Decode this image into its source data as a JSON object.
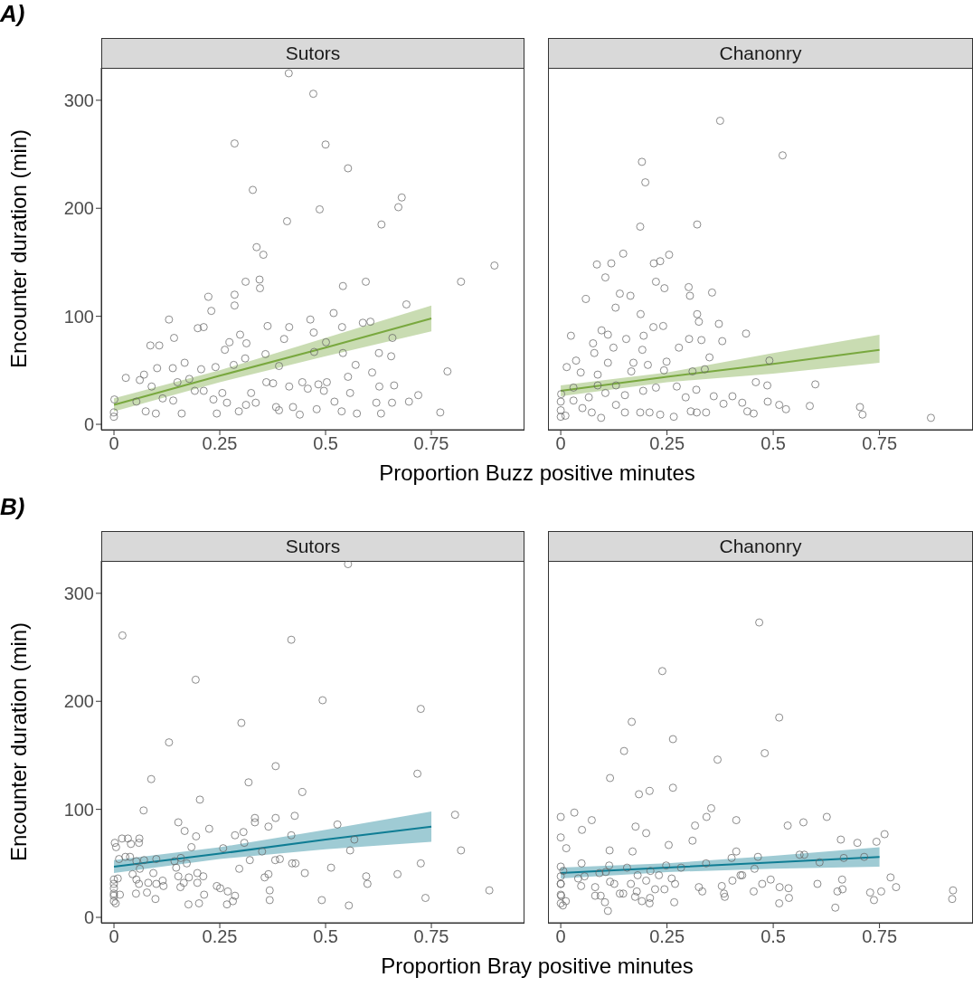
{
  "chart_data": [
    {
      "type": "scatter",
      "title": "Sutors",
      "annotations": [
        "A)"
      ],
      "xlabel": "Proportion Buzz positive minutes",
      "ylabel": "Encounter duration (min)",
      "xlim": [
        -0.03,
        0.97
      ],
      "ylim": [
        -5,
        330
      ],
      "xticks": [
        0,
        0.25,
        0.5,
        0.75
      ],
      "yticks": [
        0,
        100,
        200,
        300
      ],
      "line_style": "solid",
      "series": [
        {
          "type": "scatter",
          "marker": "circle",
          "color": "#666666",
          "x": [
            0.413,
            0.471,
            0.285,
            0.5,
            0.553,
            0.328,
            0.68,
            0.672,
            0.486,
            0.632,
            0.409,
            0.337,
            0.353,
            0.899,
            0.311,
            0.344,
            0.345,
            0.82,
            0.595,
            0.541,
            0.223,
            0.285,
            0.23,
            0.285,
            0.691,
            0.13,
            0.464,
            0.519,
            0.198,
            0.212,
            0.363,
            0.414,
            0.588,
            0.606,
            0.142,
            0.298,
            0.472,
            0.539,
            0.086,
            0.107,
            0.262,
            0.273,
            0.313,
            0.402,
            0.658,
            0.501,
            0.028,
            0.061,
            0.071,
            0.102,
            0.139,
            0.167,
            0.206,
            0.24,
            0.283,
            0.31,
            0.358,
            0.39,
            0.473,
            0.541,
            0.626,
            0.655,
            0.571,
            0.61,
            0.788,
            0.771,
            0.719,
            0.697,
            0.657,
            0.631,
            0.62,
            0.627,
            0.662,
            0.574,
            0.558,
            0.538,
            0.521,
            0.503,
            0.483,
            0.479,
            0.458,
            0.439,
            0.423,
            0.414,
            0.39,
            0.383,
            0.36,
            0.335,
            0.312,
            0.295,
            0.267,
            0.243,
            0.235,
            0.212,
            0.191,
            0.16,
            0.14,
            0.115,
            0.099,
            0.075,
            0.053,
            0.001,
            0,
            0,
            0.089,
            0.15,
            0.178,
            0.256,
            0.324,
            0.376,
            0.445,
            0.496,
            0.553
          ],
          "values": [
            325,
            306,
            260,
            259,
            237,
            217,
            210,
            201,
            199,
            185,
            188,
            164,
            157,
            147,
            132,
            134,
            126,
            132,
            132,
            128,
            118,
            120,
            105,
            110,
            111,
            97,
            97,
            103,
            89,
            90,
            91,
            90,
            94,
            95,
            80,
            83,
            85,
            90,
            73,
            73,
            69,
            76,
            75,
            79,
            80,
            76,
            43,
            41,
            46,
            52,
            52,
            57,
            51,
            53,
            55,
            61,
            65,
            54,
            67,
            66,
            66,
            63,
            55,
            48,
            49,
            11,
            27,
            21,
            20,
            10,
            20,
            35,
            36,
            10,
            29,
            12,
            21,
            39,
            37,
            14,
            33,
            9,
            16,
            35,
            13,
            16,
            39,
            20,
            18,
            12,
            20,
            10,
            23,
            31,
            31,
            10,
            22,
            24,
            10,
            12,
            21,
            23,
            7,
            11,
            35,
            39,
            42,
            29,
            29,
            38,
            39,
            31,
            44
          ]
        },
        {
          "type": "line",
          "color": "#79a83f",
          "x": [
            0,
            0.25,
            0.5,
            0.75
          ],
          "values": [
            18,
            45,
            71,
            98
          ],
          "lower": [
            12,
            39,
            63,
            86
          ],
          "upper": [
            24,
            50,
            80,
            110
          ]
        }
      ]
    },
    {
      "type": "scatter",
      "title": "Chanonry",
      "xlim": [
        -0.03,
        0.97
      ],
      "ylim": [
        -5,
        330
      ],
      "xticks": [
        0,
        0.25,
        0.5,
        0.75
      ],
      "yticks": [
        0,
        100,
        200,
        300
      ],
      "tick_labels": "x",
      "line_style": "solid",
      "series": [
        {
          "type": "scatter",
          "marker": "circle",
          "color": "#666666",
          "x": [
            0.375,
            0.522,
            0.191,
            0.199,
            0.187,
            0.321,
            0.147,
            0.255,
            0.085,
            0.119,
            0.219,
            0.234,
            0.105,
            0.224,
            0.244,
            0.301,
            0.304,
            0.356,
            0.059,
            0.139,
            0.164,
            0.129,
            0.188,
            0.321,
            0.325,
            0.372,
            0.436,
            0.024,
            0.096,
            0.111,
            0.154,
            0.195,
            0.218,
            0.241,
            0.076,
            0.079,
            0.124,
            0.192,
            0.302,
            0.331,
            0.38,
            0.278,
            0.35,
            0.491,
            0.036,
            0.014,
            0.111,
            0.171,
            0.249,
            0.205,
            0.047,
            0.087,
            0.166,
            0.243,
            0.31,
            0.339,
            0.459,
            0.486,
            0.599,
            0.586,
            0.53,
            0.514,
            0.487,
            0.454,
            0.439,
            0.427,
            0.404,
            0.36,
            0.383,
            0.342,
            0.32,
            0.306,
            0.294,
            0.266,
            0.234,
            0.209,
            0.187,
            0.151,
            0.13,
            0.095,
            0.073,
            0.051,
            0.03,
            0.011,
            0,
            0,
            0,
            0.001,
            0.03,
            0.066,
            0.105,
            0.151,
            0.194,
            0.224,
            0.273,
            0.319,
            0.704,
            0.71,
            0.871,
            0.087,
            0.13
          ],
          "values": [
            281,
            249,
            243,
            224,
            183,
            185,
            158,
            157,
            148,
            149,
            149,
            151,
            136,
            132,
            126,
            127,
            119,
            122,
            116,
            121,
            119,
            108,
            102,
            102,
            95,
            93,
            84,
            82,
            87,
            83,
            79,
            82,
            90,
            91,
            75,
            66,
            71,
            69,
            79,
            78,
            77,
            71,
            62,
            59,
            59,
            53,
            57,
            57,
            58,
            55,
            48,
            46,
            49,
            50,
            49,
            51,
            39,
            36,
            37,
            17,
            14,
            18,
            21,
            10,
            12,
            20,
            26,
            26,
            19,
            11,
            11,
            12,
            25,
            7,
            9,
            11,
            11,
            11,
            18,
            6,
            11,
            15,
            22,
            8,
            7,
            21,
            13,
            28,
            34,
            25,
            29,
            27,
            31,
            34,
            35,
            32,
            16,
            9,
            6,
            36,
            36
          ]
        },
        {
          "type": "line",
          "color": "#79a83f",
          "x": [
            0,
            0.25,
            0.5,
            0.75
          ],
          "values": [
            31,
            44,
            56,
            69
          ],
          "lower": [
            26,
            39,
            47,
            57
          ],
          "upper": [
            36,
            48,
            66,
            83
          ]
        }
      ]
    },
    {
      "type": "scatter",
      "title": "Sutors",
      "annotations": [
        "B)"
      ],
      "xlabel": "Proportion Bray positive minutes",
      "ylabel": "Encounter duration (min)",
      "xlim": [
        -0.03,
        0.97
      ],
      "ylim": [
        -5,
        330
      ],
      "xticks": [
        0,
        0.25,
        0.5,
        0.75
      ],
      "yticks": [
        0,
        100,
        200,
        300
      ],
      "line_style": "solid",
      "series": [
        {
          "type": "scatter",
          "marker": "circle",
          "color": "#666666",
          "x": [
            0.553,
            0.02,
            0.419,
            0.193,
            0.493,
            0.725,
            0.301,
            0.13,
            0.382,
            0.717,
            0.088,
            0.318,
            0.203,
            0.445,
            0.07,
            0.806,
            0.152,
            0.333,
            0.333,
            0.382,
            0.427,
            0.528,
            0.167,
            0.225,
            0.365,
            0.194,
            0.286,
            0.306,
            0.419,
            0.002,
            0.005,
            0.019,
            0.033,
            0.04,
            0.06,
            0.059,
            0.183,
            0.258,
            0.308,
            0.35,
            0.568,
            0.558,
            0.82,
            0.012,
            0.027,
            0.038,
            0.053,
            0.071,
            0.1,
            0.143,
            0.158,
            0.172,
            0.321,
            0.381,
            0.392,
            0.421,
            0.429,
            0.725,
            0.296,
            0.147,
            0.513,
            0.044,
            0.061,
            0.093,
            0.152,
            0.197,
            0.211,
            0.356,
            0.365,
            0.451,
            0.596,
            0.67,
            0.053,
            0.009,
            0,
            0.059,
            0.081,
            0.1,
            0.115,
            0.117,
            0.165,
            0.157,
            0.177,
            0.197,
            0.243,
            0.251,
            0.269,
            0.368,
            0.599,
            0.887,
            0,
            0,
            0,
            0,
            0.014,
            0.052,
            0.078,
            0.098,
            0,
            0.004,
            0.176,
            0.201,
            0.213,
            0.267,
            0.281,
            0.286,
            0.368,
            0.491,
            0.555,
            0.736
          ],
          "values": [
            327,
            261,
            257,
            220,
            201,
            193,
            180,
            162,
            140,
            133,
            128,
            125,
            109,
            116,
            99,
            95,
            88,
            92,
            88,
            92,
            94,
            86,
            80,
            82,
            84,
            75,
            76,
            79,
            76,
            69,
            65,
            73,
            73,
            68,
            73,
            69,
            65,
            64,
            69,
            61,
            72,
            62,
            62,
            54,
            56,
            56,
            52,
            53,
            54,
            52,
            55,
            50,
            53,
            53,
            54,
            50,
            50,
            50,
            45,
            46,
            46,
            40,
            45,
            41,
            38,
            41,
            38,
            37,
            40,
            41,
            38,
            40,
            35,
            36,
            35,
            31,
            32,
            31,
            34,
            29,
            32,
            28,
            37,
            32,
            29,
            27,
            24,
            25,
            31,
            25,
            27,
            22,
            31,
            20,
            21,
            22,
            23,
            17,
            15,
            13,
            12,
            13,
            21,
            12,
            15,
            20,
            16,
            16,
            11,
            18
          ]
        },
        {
          "type": "line",
          "color": "#0f7d94",
          "x": [
            0,
            0.25,
            0.5,
            0.75
          ],
          "values": [
            47,
            59,
            72,
            84
          ],
          "lower": [
            41,
            54,
            63,
            70
          ],
          "upper": [
            53,
            65,
            81,
            98
          ]
        }
      ]
    },
    {
      "type": "scatter",
      "title": "Chanonry",
      "xlim": [
        -0.03,
        0.97
      ],
      "ylim": [
        -5,
        330
      ],
      "xticks": [
        0,
        0.25,
        0.5,
        0.75
      ],
      "yticks": [
        0,
        100,
        200,
        300
      ],
      "tick_labels": "x",
      "line_style": "solid",
      "series": [
        {
          "type": "scatter",
          "marker": "circle",
          "color": "#666666",
          "x": [
            0.467,
            0.239,
            0.514,
            0.167,
            0.264,
            0.48,
            0.149,
            0.369,
            0.116,
            0.264,
            0.184,
            0.209,
            0.354,
            0,
            0.032,
            0.073,
            0.05,
            0.176,
            0.201,
            0.316,
            0.343,
            0.413,
            0.534,
            0.571,
            0.626,
            0,
            0.013,
            0.115,
            0.169,
            0.254,
            0.31,
            0.413,
            0.659,
            0.698,
            0.743,
            0.762,
            0.049,
            0.114,
            0.248,
            0.342,
            0.402,
            0.464,
            0.562,
            0.573,
            0.714,
            0.609,
            0.666,
            0,
            0.006,
            0.091,
            0.106,
            0.156,
            0.181,
            0.211,
            0.231,
            0.283,
            0.456,
            0,
            0.041,
            0.056,
            0.423,
            0.427,
            0.404,
            0.494,
            0.662,
            0.776,
            0.789,
            0.116,
            0.126,
            0.165,
            0.201,
            0.261,
            0.269,
            0.325,
            0.379,
            0.474,
            0.515,
            0.536,
            0.604,
            0,
            0,
            0.048,
            0.081,
            0.139,
            0.147,
            0.179,
            0.222,
            0.244,
            0.333,
            0.384,
            0.454,
            0.651,
            0.663,
            0.728,
            0.754,
            0.923,
            0.921,
            0,
            0.001,
            0.012,
            0,
            0.005,
            0.081,
            0.094,
            0.104,
            0.111,
            0.175,
            0.191,
            0.21,
            0.209,
            0.267,
            0.386,
            0.514,
            0.537,
            0.646,
            0.737
          ],
          "values": [
            273,
            228,
            185,
            181,
            165,
            152,
            154,
            146,
            129,
            120,
            114,
            117,
            101,
            93,
            97,
            90,
            81,
            84,
            78,
            85,
            93,
            90,
            85,
            88,
            93,
            74,
            64,
            62,
            61,
            67,
            71,
            61,
            72,
            69,
            70,
            77,
            50,
            48,
            48,
            50,
            55,
            56,
            58,
            58,
            56,
            51,
            55,
            47,
            43,
            41,
            42,
            46,
            39,
            43,
            39,
            46,
            45,
            38,
            36,
            38,
            39,
            39,
            34,
            35,
            35,
            37,
            28,
            33,
            31,
            31,
            34,
            36,
            31,
            28,
            29,
            31,
            28,
            27,
            31,
            31,
            31,
            29,
            28,
            22,
            22,
            24,
            26,
            26,
            24,
            22,
            24,
            24,
            26,
            23,
            24,
            25,
            17,
            21,
            20,
            15,
            13,
            11,
            20,
            20,
            14,
            6,
            19,
            15,
            18,
            13,
            14,
            19,
            13,
            18,
            9,
            16
          ]
        },
        {
          "type": "line",
          "color": "#0f7d94",
          "x": [
            0,
            0.25,
            0.5,
            0.75
          ],
          "values": [
            41,
            46,
            51,
            56
          ],
          "lower": [
            36,
            42,
            45,
            47
          ],
          "upper": [
            46,
            50,
            57,
            65
          ]
        }
      ]
    }
  ]
}
